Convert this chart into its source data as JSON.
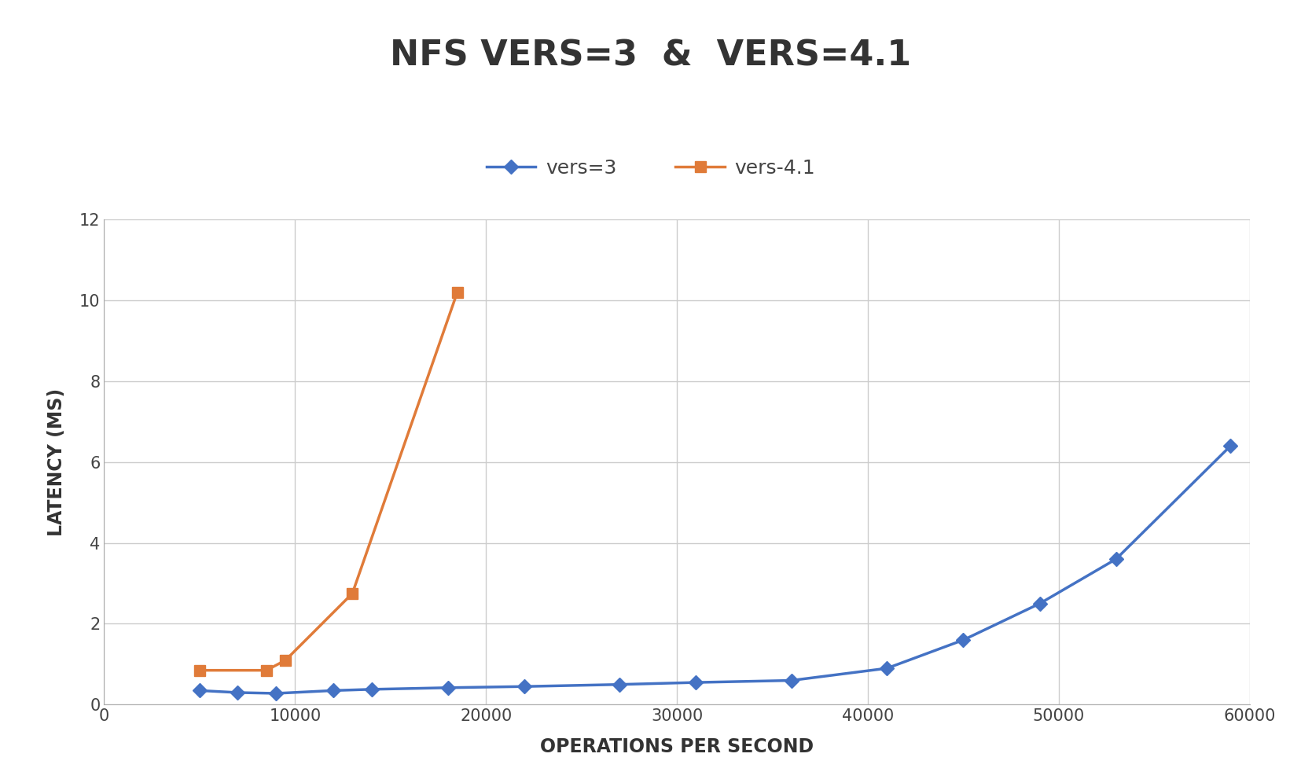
{
  "title": "NFS VERS=3  &  VERS=4.1",
  "xlabel": "OPERATIONS PER SECOND",
  "ylabel": "LATENCY (MS)",
  "vers3_x": [
    5000,
    7000,
    9000,
    12000,
    14000,
    18000,
    22000,
    27000,
    31000,
    36000,
    41000,
    45000,
    49000,
    53000,
    59000
  ],
  "vers3_y": [
    0.35,
    0.3,
    0.28,
    0.35,
    0.38,
    0.42,
    0.45,
    0.5,
    0.55,
    0.6,
    0.9,
    1.6,
    2.5,
    3.6,
    6.4
  ],
  "vers41_x": [
    5000,
    8500,
    9500,
    13000,
    18500
  ],
  "vers41_y": [
    0.85,
    0.85,
    1.1,
    2.75,
    10.2
  ],
  "vers3_color": "#4472c4",
  "vers41_color": "#e07b39",
  "ylim": [
    0,
    12
  ],
  "xlim": [
    0,
    60000
  ],
  "yticks": [
    0,
    2,
    4,
    6,
    8,
    10,
    12
  ],
  "xticks": [
    0,
    10000,
    20000,
    30000,
    40000,
    50000,
    60000
  ],
  "xtick_labels": [
    "0",
    "10000",
    "20000",
    "30000",
    "40000",
    "50000",
    "60000"
  ],
  "title_fontsize": 32,
  "axis_label_fontsize": 17,
  "tick_fontsize": 15,
  "legend_fontsize": 18,
  "background_color": "#ffffff",
  "grid_color": "#cccccc"
}
